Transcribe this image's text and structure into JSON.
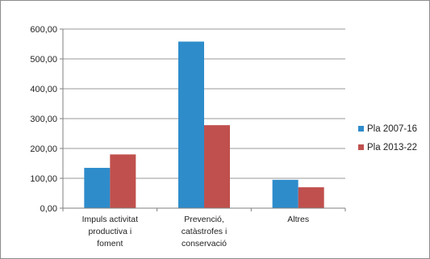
{
  "chart_data": {
    "type": "bar",
    "categories": [
      [
        "Impuls activitat",
        "productiva i",
        "foment"
      ],
      [
        "Prevenció,",
        "catàstrofes i",
        "conservació"
      ],
      [
        "Altres"
      ]
    ],
    "series": [
      {
        "name": "Pla 2007-16",
        "values": [
          135,
          558,
          95
        ],
        "color": "#2e8ccb"
      },
      {
        "name": "Pla 2013-22",
        "values": [
          180,
          278,
          70
        ],
        "color": "#c0504d"
      }
    ],
    "yticks": [
      "0,00",
      "100,00",
      "200,00",
      "300,00",
      "400,00",
      "500,00",
      "600,00"
    ],
    "ylim": [
      0,
      600
    ],
    "grid": true,
    "legend_position": "right"
  }
}
